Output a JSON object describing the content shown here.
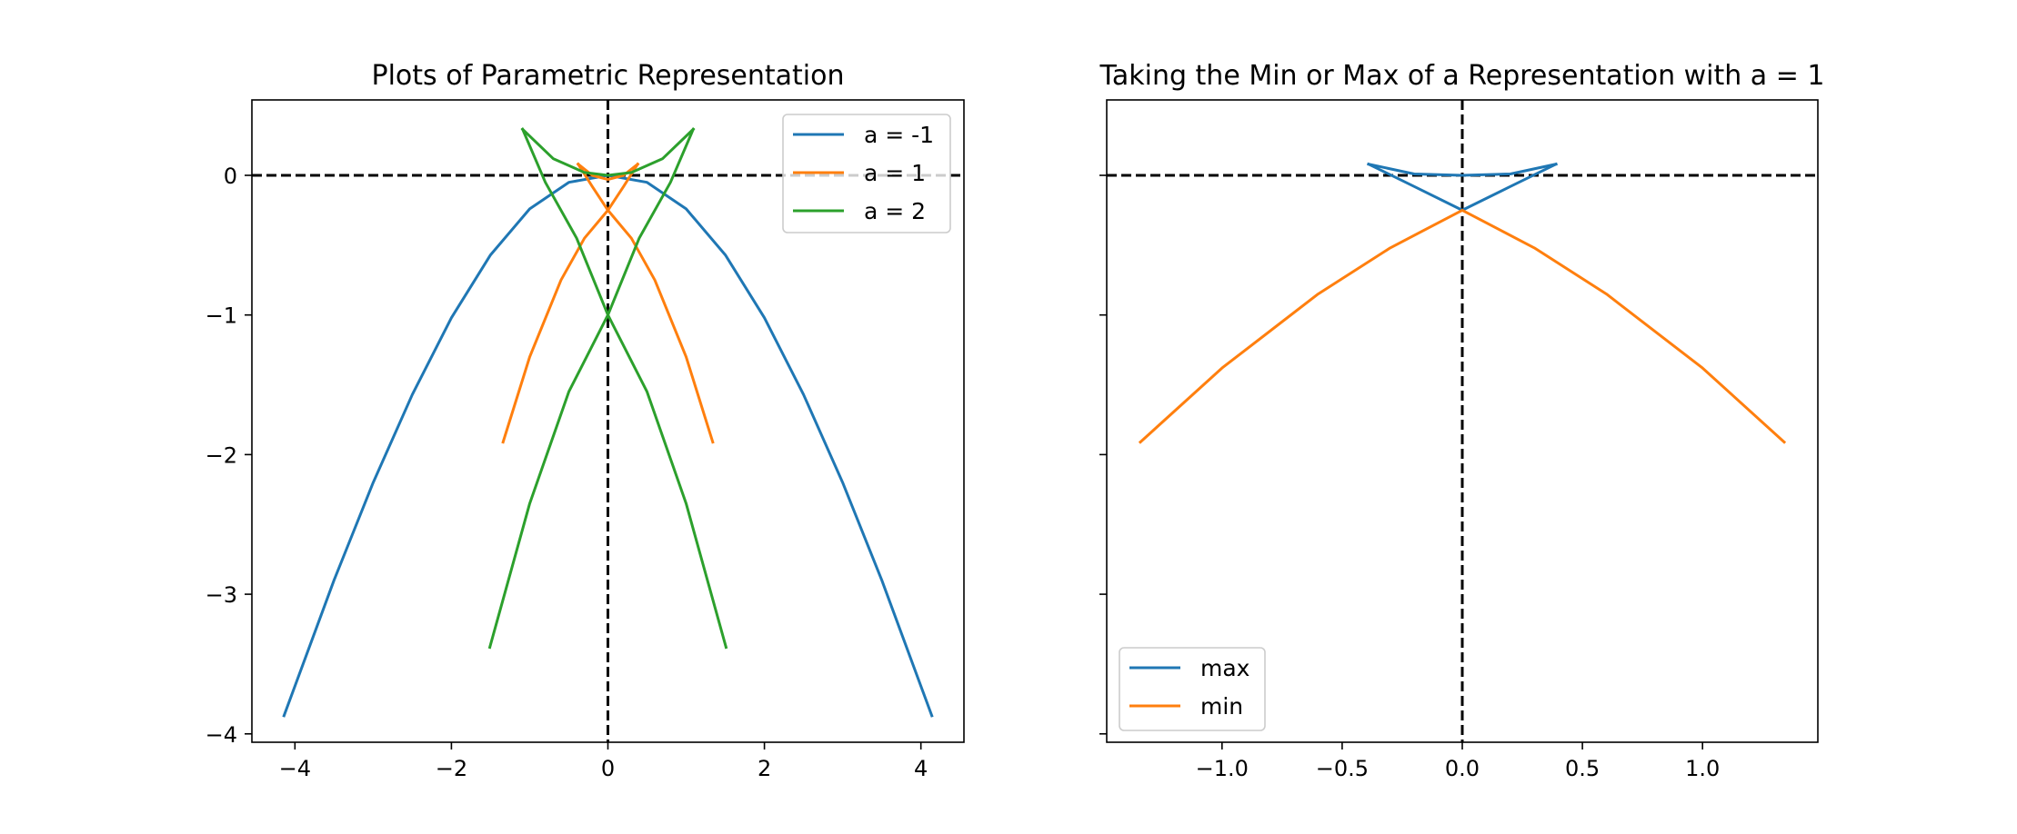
{
  "chart_data": [
    {
      "type": "line",
      "title": "Plots of Parametric Representation",
      "xlabel": "",
      "ylabel": "",
      "xlim": [
        -4.55,
        4.55
      ],
      "ylim": [
        -4.06,
        0.54
      ],
      "xticks": [
        -4,
        -2,
        0,
        2,
        4
      ],
      "xtick_labels": [
        "−4",
        "−2",
        "0",
        "2",
        "4"
      ],
      "yticks": [
        0,
        -1,
        -2,
        -3,
        -4
      ],
      "ytick_labels": [
        "0",
        "−1",
        "−2",
        "−3",
        "−4"
      ],
      "reference_lines": [
        {
          "orientation": "horizontal",
          "value": 0,
          "style": "dashed",
          "color": "#000000"
        },
        {
          "orientation": "vertical",
          "value": 0,
          "style": "dashed",
          "color": "#000000"
        }
      ],
      "legend_position": "top-right",
      "grid": false,
      "series": [
        {
          "name": "a = -1",
          "color": "#1f77b4",
          "points": [
            [
              -4.14,
              -3.87
            ],
            [
              -3.5,
              -2.9
            ],
            [
              -3.0,
              -2.2
            ],
            [
              -2.5,
              -1.57
            ],
            [
              -2.0,
              -1.02
            ],
            [
              -1.5,
              -0.57
            ],
            [
              -1.0,
              -0.24
            ],
            [
              -0.5,
              -0.05
            ],
            [
              0.0,
              0.0
            ],
            [
              0.5,
              -0.05
            ],
            [
              1.0,
              -0.24
            ],
            [
              1.5,
              -0.57
            ],
            [
              2.0,
              -1.02
            ],
            [
              2.5,
              -1.57
            ],
            [
              3.0,
              -2.2
            ],
            [
              3.5,
              -2.9
            ],
            [
              4.14,
              -3.87
            ]
          ]
        },
        {
          "name": "a = 1",
          "color": "#ff7f0e",
          "branches": [
            [
              [
                -1.34,
                -1.91
              ],
              [
                -1.0,
                -1.3
              ],
              [
                -0.6,
                -0.75
              ],
              [
                -0.3,
                -0.45
              ],
              [
                0.0,
                -0.25
              ],
              [
                0.2,
                -0.08
              ],
              [
                0.38,
                0.08
              ]
            ],
            [
              [
                1.34,
                -1.91
              ],
              [
                1.0,
                -1.3
              ],
              [
                0.6,
                -0.75
              ],
              [
                0.3,
                -0.45
              ],
              [
                0.0,
                -0.25
              ],
              [
                -0.2,
                -0.08
              ],
              [
                -0.38,
                0.08
              ]
            ],
            [
              [
                -0.38,
                0.08
              ],
              [
                -0.2,
                0.0
              ],
              [
                0.0,
                -0.03
              ],
              [
                0.2,
                0.0
              ],
              [
                0.38,
                0.08
              ]
            ]
          ]
        },
        {
          "name": "a = 2",
          "color": "#2ca02c",
          "branches": [
            [
              [
                -1.51,
                -3.38
              ],
              [
                -1.0,
                -2.35
              ],
              [
                -0.5,
                -1.55
              ],
              [
                0.0,
                -1.0
              ],
              [
                0.4,
                -0.45
              ],
              [
                0.8,
                -0.05
              ],
              [
                1.09,
                0.33
              ]
            ],
            [
              [
                1.51,
                -3.38
              ],
              [
                1.0,
                -2.35
              ],
              [
                0.5,
                -1.55
              ],
              [
                0.0,
                -1.0
              ],
              [
                -0.4,
                -0.45
              ],
              [
                -0.8,
                -0.05
              ],
              [
                -1.09,
                0.33
              ]
            ],
            [
              [
                -1.09,
                0.33
              ],
              [
                -0.7,
                0.12
              ],
              [
                -0.3,
                0.02
              ],
              [
                0.0,
                0.0
              ],
              [
                0.3,
                0.02
              ],
              [
                0.7,
                0.12
              ],
              [
                1.09,
                0.33
              ]
            ]
          ]
        }
      ]
    },
    {
      "type": "line",
      "title": "Taking the Min or Max of a Representation with a = 1",
      "xlabel": "",
      "ylabel": "",
      "xlim": [
        -1.48,
        1.48
      ],
      "ylim": [
        -4.06,
        0.54
      ],
      "xticks": [
        -1.0,
        -0.5,
        0.0,
        0.5,
        1.0
      ],
      "xtick_labels": [
        "−1.0",
        "−0.5",
        "0.0",
        "0.5",
        "1.0"
      ],
      "yticks": [
        0,
        -1,
        -2,
        -3,
        -4
      ],
      "ytick_labels": [],
      "reference_lines": [
        {
          "orientation": "horizontal",
          "value": 0,
          "style": "dashed",
          "color": "#000000"
        },
        {
          "orientation": "vertical",
          "value": 0,
          "style": "dashed",
          "color": "#000000"
        }
      ],
      "legend_position": "bottom-left",
      "grid": false,
      "series": [
        {
          "name": "max",
          "color": "#1f77b4",
          "branches": [
            [
              [
                -0.39,
                0.08
              ],
              [
                -0.2,
                0.01
              ],
              [
                0.0,
                0.0
              ],
              [
                0.2,
                0.01
              ],
              [
                0.39,
                0.08
              ]
            ],
            [
              [
                -0.39,
                0.08
              ],
              [
                -0.2,
                -0.08
              ],
              [
                0.0,
                -0.25
              ],
              [
                0.2,
                -0.08
              ],
              [
                0.39,
                0.08
              ]
            ]
          ]
        },
        {
          "name": "min",
          "color": "#ff7f0e",
          "points": [
            [
              -1.34,
              -1.91
            ],
            [
              -1.0,
              -1.38
            ],
            [
              -0.6,
              -0.85
            ],
            [
              -0.3,
              -0.52
            ],
            [
              0.0,
              -0.25
            ],
            [
              0.3,
              -0.52
            ],
            [
              0.6,
              -0.85
            ],
            [
              1.0,
              -1.38
            ],
            [
              1.34,
              -1.91
            ]
          ]
        }
      ]
    }
  ]
}
